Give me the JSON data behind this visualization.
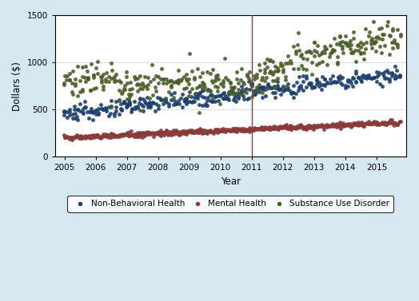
{
  "title": "",
  "xlabel": "Year",
  "ylabel": "Dollars ($)",
  "xlim": [
    2004.7,
    2015.95
  ],
  "ylim": [
    0,
    1500
  ],
  "yticks": [
    0,
    500,
    1000,
    1500
  ],
  "xticks": [
    2005,
    2006,
    2007,
    2008,
    2009,
    2010,
    2011,
    2012,
    2013,
    2014,
    2015
  ],
  "vline_x": 2011.0,
  "vline_color": "#8B3A52",
  "background_color": "#D6E8F0",
  "plot_bg_color": "#FFFFFF",
  "color_nbh": "#1A3F6F",
  "color_mh": "#8B3A3A",
  "color_sud": "#4B5E28",
  "marker_size": 3.5,
  "seed": 42
}
